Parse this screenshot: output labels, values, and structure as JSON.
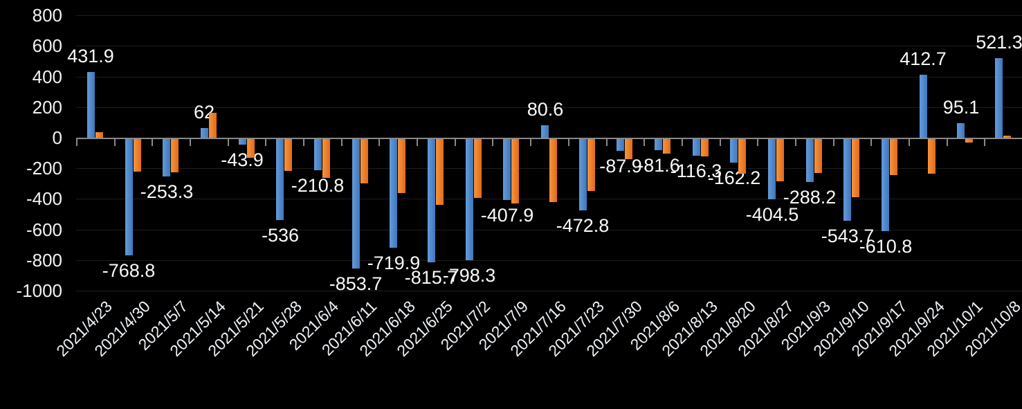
{
  "chart_data": {
    "type": "bar",
    "title": "",
    "legend": "none",
    "grid": true,
    "background": "#000000",
    "gridline_color": "#1e1e1e",
    "axis_color": "#8a8a8a",
    "label_color": "#fafafa",
    "x_label_rotation": -45,
    "ylim": [
      -1000,
      800
    ],
    "ytick_interval": 200,
    "yticks": [
      "800",
      "600",
      "400",
      "200",
      "0",
      "-200",
      "-400",
      "-600",
      "-800",
      "-1000"
    ],
    "categories": [
      "2021/4/23",
      "2021/4/30",
      "2021/5/7",
      "2021/5/14",
      "2021/5/21",
      "2021/5/28",
      "2021/6/4",
      "2021/6/11",
      "2021/6/18",
      "2021/6/25",
      "2021/7/2",
      "2021/7/9",
      "2021/7/16",
      "2021/7/23",
      "2021/7/30",
      "2021/8/6",
      "2021/8/13",
      "2021/8/20",
      "2021/8/27",
      "2021/9/3",
      "2021/9/10",
      "2021/9/17",
      "2021/9/24",
      "2021/10/1",
      "2021/10/8"
    ],
    "series": [
      {
        "name": "blue",
        "color": "#4e88cc",
        "data_labels": true,
        "values": [
          431.9,
          -768.8,
          -253.3,
          62,
          -43.9,
          -536,
          -210.8,
          -853.7,
          -719.9,
          -815.7,
          -798.3,
          -407.9,
          80.6,
          -472.8,
          -87.9,
          -81.6,
          -116.3,
          -162.2,
          -404.5,
          -288.2,
          -543.7,
          -610.8,
          412.7,
          95.1,
          521.3
        ]
      },
      {
        "name": "orange",
        "color": "#ed7d31",
        "data_labels": false,
        "values": [
          37,
          -223,
          -225,
          165,
          -130,
          -216,
          -262,
          -298,
          -360,
          -440,
          -393,
          -430,
          -420,
          -347,
          -138,
          -105,
          -122,
          -235,
          -283,
          -230,
          -390,
          -243,
          -235,
          -30,
          15
        ]
      }
    ]
  }
}
